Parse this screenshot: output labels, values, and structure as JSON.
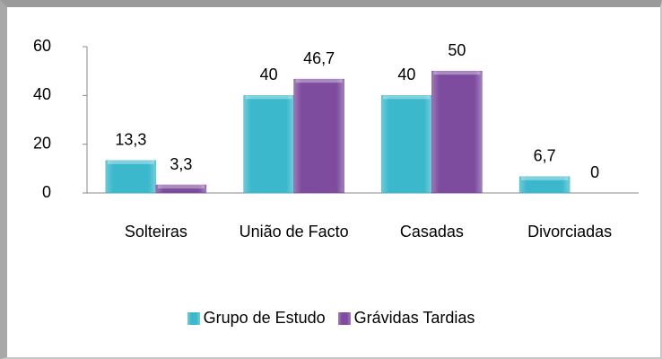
{
  "chart_data": {
    "type": "bar",
    "categories": [
      "Solteiras",
      "União de Facto",
      "Casadas",
      "Divorciadas"
    ],
    "series": [
      {
        "name": "Grupo de Estudo",
        "color": "#3cb8cc",
        "values": [
          13.3,
          40,
          40,
          6.7
        ],
        "value_labels": [
          "13,3",
          "40",
          "40",
          "6,7"
        ]
      },
      {
        "name": "Grávidas Tardias",
        "color": "#7e4c9e",
        "values": [
          3.3,
          46.7,
          50,
          0
        ],
        "value_labels": [
          "3,3",
          "46,7",
          "50",
          "0"
        ]
      }
    ],
    "ylim": [
      0,
      60
    ],
    "yticks": [
      0,
      20,
      40,
      60
    ],
    "grid": false,
    "legend": "bottom"
  }
}
